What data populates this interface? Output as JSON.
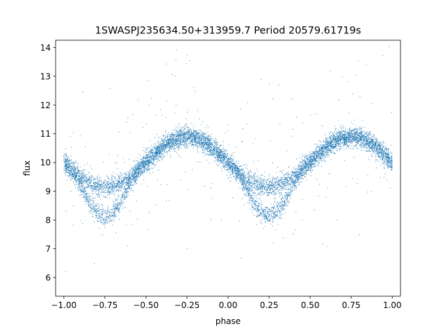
{
  "chart_data": {
    "type": "scatter",
    "title": "1SWASPJ235634.50+313959.7 Period 20579.61719s",
    "xlabel": "phase",
    "ylabel": "flux",
    "xlim": [
      -1.05,
      1.05
    ],
    "ylim": [
      5.35,
      14.25
    ],
    "x_ticks": [
      -1.0,
      -0.75,
      -0.5,
      -0.25,
      0.0,
      0.25,
      0.5,
      0.75,
      1.0
    ],
    "x_tick_labels": [
      "−1.00",
      "−0.75",
      "−0.50",
      "−0.25",
      "0.00",
      "0.25",
      "0.50",
      "0.75",
      "1.00"
    ],
    "y_ticks": [
      6,
      7,
      8,
      9,
      10,
      11,
      12,
      13,
      14
    ],
    "y_tick_labels": [
      "6",
      "7",
      "8",
      "9",
      "10",
      "11",
      "12",
      "13",
      "14"
    ],
    "grid": false,
    "marker_color": "#1f77b4",
    "series": [
      {
        "phase_range": [
          -1.0,
          1.0
        ],
        "period_in_phase": 1.0,
        "mean_flux": 10.0,
        "maximum_flux": 10.9,
        "maximum_phase": [
          -0.25,
          0.75
        ],
        "branches": [
          {
            "minimum_flux": 9.15,
            "minimum_phase": [
              -0.75,
              0.25
            ]
          },
          {
            "minimum_flux": 8.15,
            "minimum_phase": [
              -0.75,
              0.25
            ]
          }
        ],
        "outlier_flux_range": [
          5.8,
          13.9
        ]
      }
    ]
  }
}
